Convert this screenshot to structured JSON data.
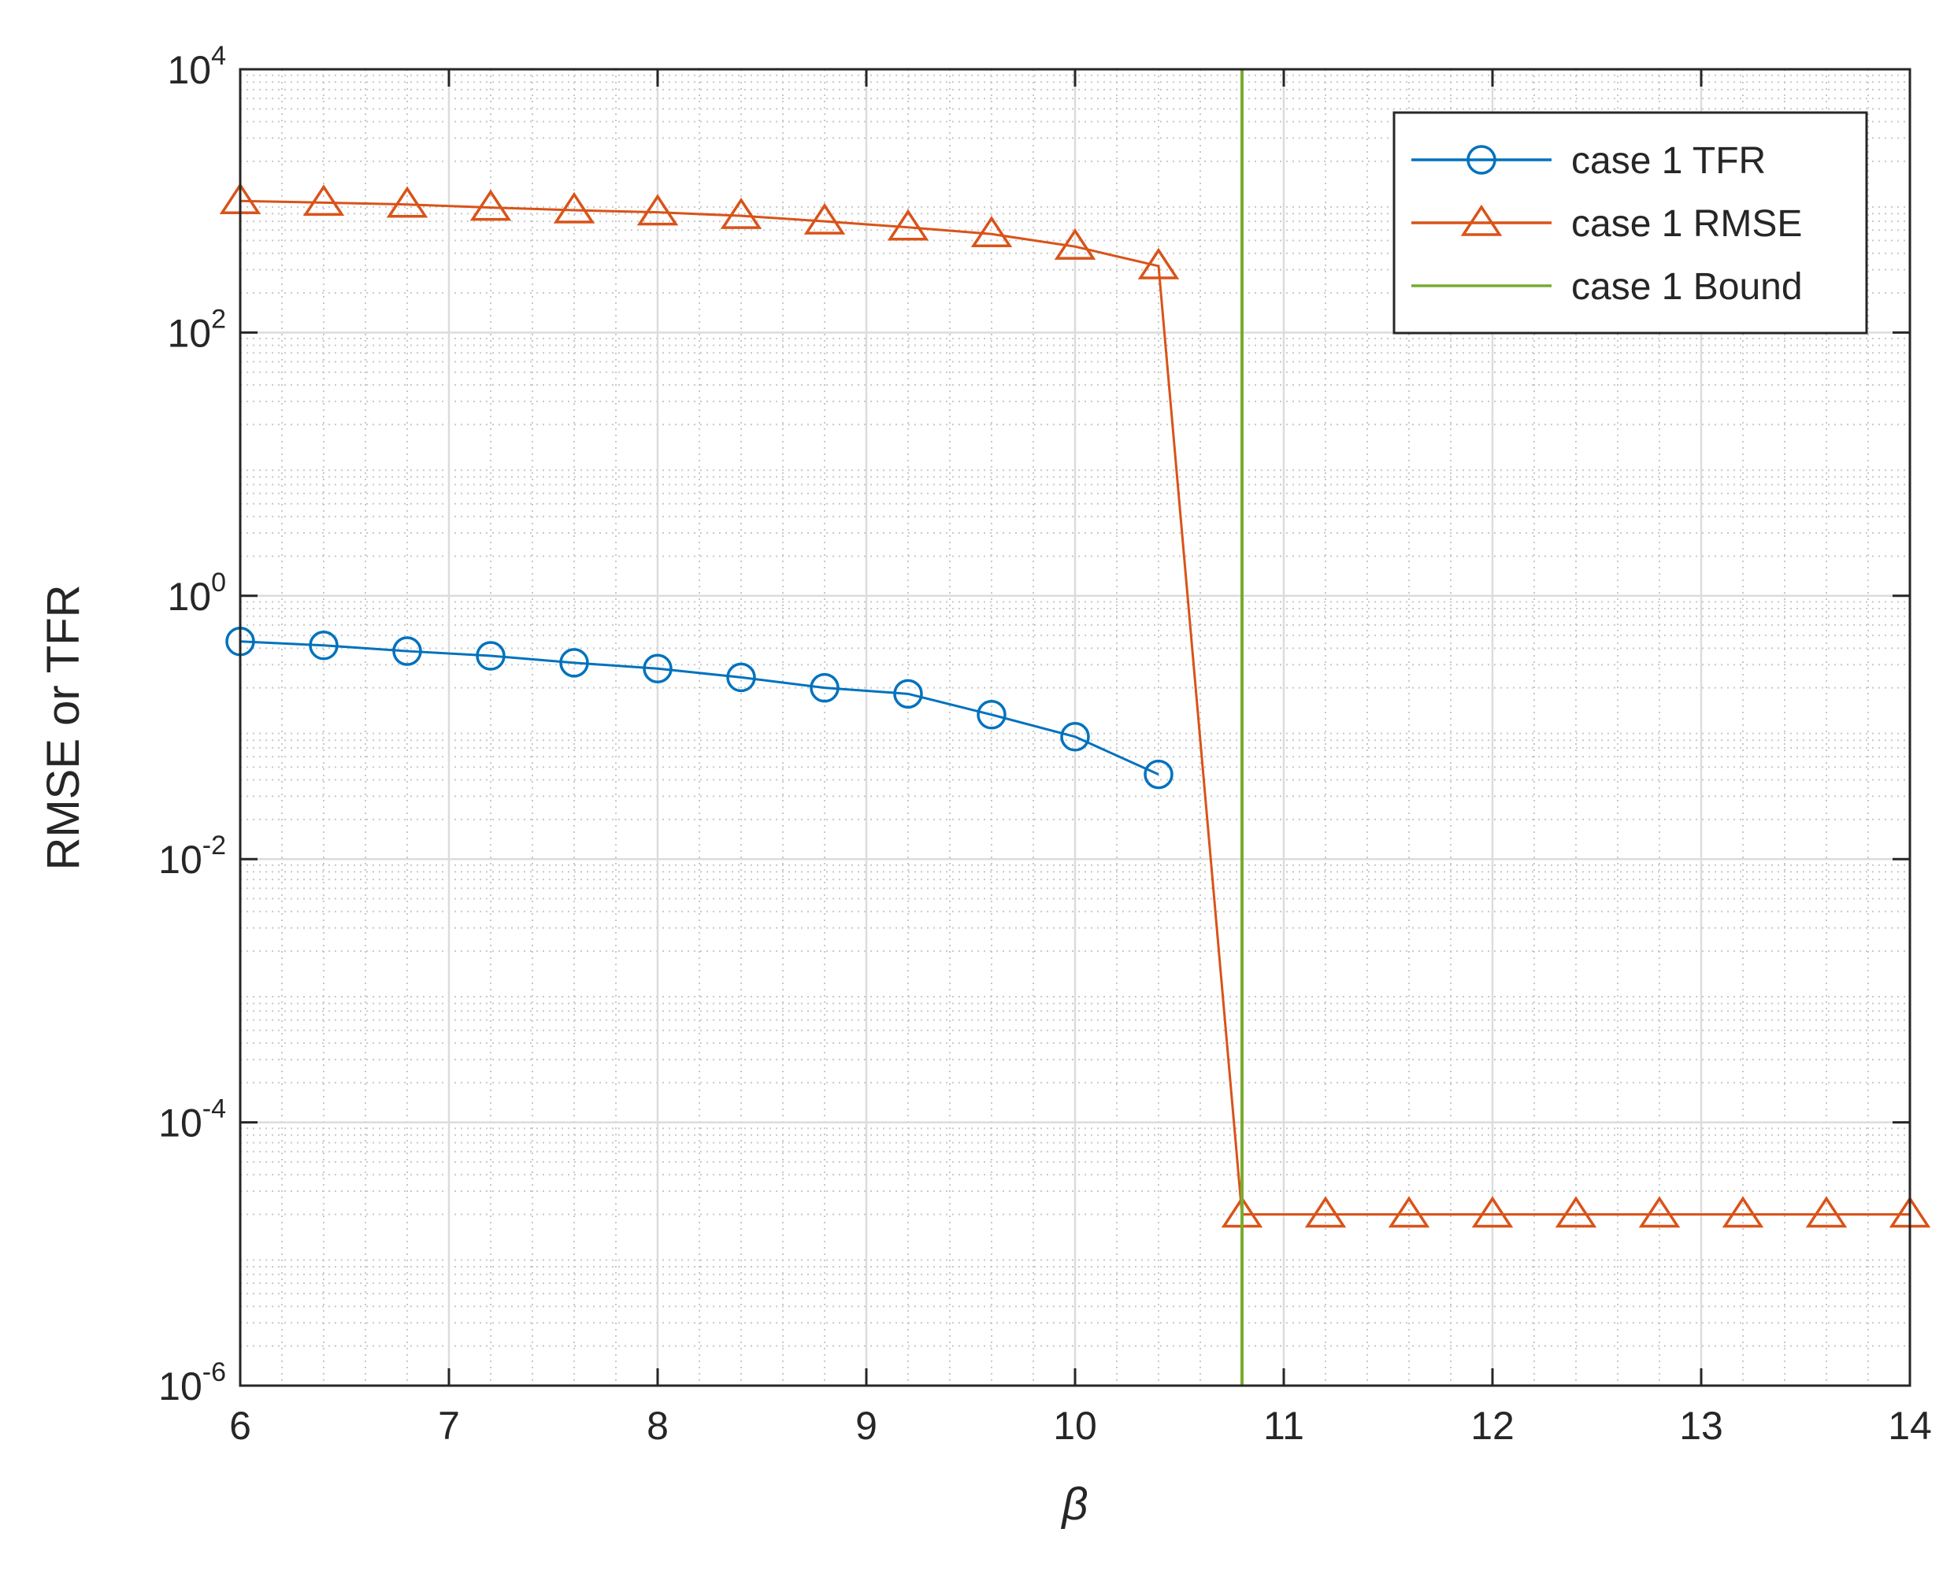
{
  "chart_data": {
    "type": "line",
    "title": "",
    "xlabel": "β",
    "ylabel": "RMSE or TFR",
    "xlim": [
      6,
      14
    ],
    "ylim": [
      1e-06,
      10000
    ],
    "yscale": "log",
    "x_ticks": [
      {
        "value": 6,
        "label": "6"
      },
      {
        "value": 7,
        "label": "7"
      },
      {
        "value": 8,
        "label": "8"
      },
      {
        "value": 9,
        "label": "9"
      },
      {
        "value": 10,
        "label": "10"
      },
      {
        "value": 11,
        "label": "11"
      },
      {
        "value": 12,
        "label": "12"
      },
      {
        "value": 13,
        "label": "13"
      },
      {
        "value": 14,
        "label": "14"
      }
    ],
    "y_ticks": [
      {
        "exp": -6,
        "base": "10",
        "sup": "-6"
      },
      {
        "exp": -4,
        "base": "10",
        "sup": "-4"
      },
      {
        "exp": -2,
        "base": "10",
        "sup": "-2"
      },
      {
        "exp": 0,
        "base": "10",
        "sup": "0"
      },
      {
        "exp": 2,
        "base": "10",
        "sup": "2"
      },
      {
        "exp": 4,
        "base": "10",
        "sup": "4"
      }
    ],
    "grid": true,
    "minor_grid": true,
    "legend_position": "top-right",
    "series": [
      {
        "name": "case 1 TFR",
        "color": "#0072BD",
        "marker": "circle",
        "x": [
          6,
          6.4,
          6.8,
          7.2,
          7.6,
          8,
          8.4,
          8.8,
          9.2,
          9.6,
          10,
          10.4
        ],
        "y": [
          0.45,
          0.42,
          0.38,
          0.35,
          0.31,
          0.28,
          0.24,
          0.2,
          0.18,
          0.125,
          0.085,
          0.044
        ]
      },
      {
        "name": "case 1 RMSE",
        "color": "#D95319",
        "marker": "triangle",
        "x": [
          6,
          6.4,
          6.8,
          7.2,
          7.6,
          8,
          8.4,
          8.8,
          9.2,
          9.6,
          10,
          10.4,
          10.8,
          11.2,
          11.6,
          12,
          12.4,
          12.8,
          13.2,
          13.6,
          14
        ],
        "y": [
          1000,
          970,
          940,
          890,
          850,
          820,
          770,
          700,
          630,
          560,
          450,
          320,
          2e-05,
          2e-05,
          2e-05,
          2e-05,
          2e-05,
          2e-05,
          2e-05,
          2e-05,
          2e-05
        ]
      },
      {
        "name": "case 1 Bound",
        "color": "#77AC30",
        "marker": "none",
        "type": "vline",
        "x_value": 10.8
      }
    ]
  }
}
